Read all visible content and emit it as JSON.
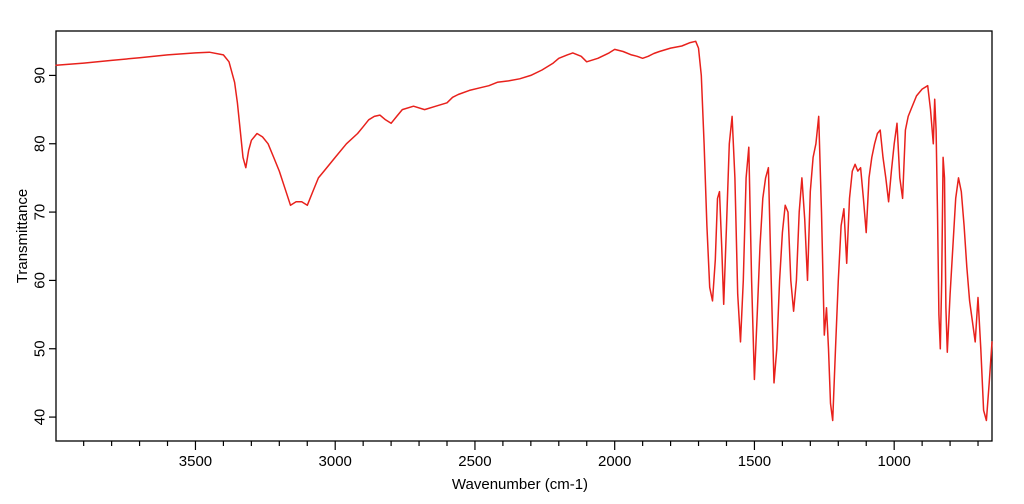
{
  "chart_data": {
    "type": "line",
    "title": "",
    "xlabel": "Wavenumber (cm-1)",
    "ylabel": "Transmittance",
    "xlim": [
      3999,
      650
    ],
    "ylim": [
      36.5,
      96.5
    ],
    "x_reversed": true,
    "grid": false,
    "legend": "none",
    "color": "#e8211c",
    "x_major_ticks": [
      3500,
      3000,
      2500,
      2000,
      1500,
      1000
    ],
    "x_tick_labels": [
      "3500",
      "3000",
      "2500",
      "2000",
      "1500",
      "1000"
    ],
    "x_minor_step": 100,
    "y_major_ticks": [
      40,
      50,
      60,
      70,
      80,
      90
    ],
    "y_tick_labels": [
      "40",
      "50",
      "60",
      "70",
      "80",
      "90"
    ],
    "series": [
      {
        "name": "",
        "x": [
          3999,
          3900,
          3800,
          3700,
          3600,
          3500,
          3450,
          3400,
          3380,
          3360,
          3350,
          3340,
          3330,
          3320,
          3310,
          3300,
          3280,
          3260,
          3240,
          3220,
          3200,
          3180,
          3160,
          3140,
          3120,
          3100,
          3080,
          3060,
          3040,
          3000,
          2960,
          2920,
          2900,
          2880,
          2860,
          2840,
          2820,
          2800,
          2780,
          2760,
          2720,
          2680,
          2640,
          2600,
          2580,
          2560,
          2520,
          2480,
          2450,
          2420,
          2380,
          2340,
          2300,
          2260,
          2220,
          2200,
          2170,
          2150,
          2120,
          2100,
          2060,
          2020,
          2000,
          1970,
          1940,
          1920,
          1900,
          1880,
          1860,
          1840,
          1800,
          1760,
          1730,
          1710,
          1700,
          1690,
          1680,
          1670,
          1660,
          1650,
          1640,
          1632,
          1625,
          1617,
          1610,
          1600,
          1590,
          1580,
          1570,
          1560,
          1550,
          1540,
          1530,
          1520,
          1510,
          1500,
          1490,
          1480,
          1470,
          1460,
          1450,
          1440,
          1430,
          1420,
          1410,
          1400,
          1390,
          1380,
          1370,
          1360,
          1350,
          1340,
          1330,
          1320,
          1310,
          1300,
          1290,
          1280,
          1270,
          1260,
          1250,
          1242,
          1235,
          1228,
          1220,
          1210,
          1200,
          1190,
          1180,
          1170,
          1160,
          1150,
          1140,
          1130,
          1120,
          1110,
          1100,
          1090,
          1080,
          1070,
          1060,
          1050,
          1040,
          1030,
          1020,
          1010,
          1000,
          990,
          980,
          970,
          960,
          950,
          940,
          920,
          900,
          880,
          870,
          860,
          855,
          850,
          845,
          840,
          835,
          830,
          825,
          820,
          815,
          810,
          800,
          790,
          780,
          770,
          760,
          750,
          740,
          730,
          720,
          710,
          700,
          690,
          680,
          670,
          660,
          650
        ],
        "y": [
          91.5,
          91.8,
          92.2,
          92.6,
          93.0,
          93.3,
          93.4,
          93.0,
          92.0,
          89.0,
          86.0,
          82.0,
          78.0,
          76.5,
          79.0,
          80.5,
          81.5,
          81.0,
          80.0,
          78.0,
          76.0,
          73.5,
          71.0,
          71.5,
          71.5,
          71.0,
          73.0,
          75.0,
          76.0,
          78.0,
          80.0,
          81.5,
          82.5,
          83.5,
          84.0,
          84.2,
          83.5,
          83.0,
          84.0,
          85.0,
          85.5,
          85.0,
          85.5,
          86.0,
          86.8,
          87.2,
          87.8,
          88.2,
          88.5,
          89.0,
          89.2,
          89.5,
          90.0,
          90.8,
          91.8,
          92.5,
          93.0,
          93.3,
          92.8,
          92.0,
          92.5,
          93.3,
          93.8,
          93.5,
          93.0,
          92.8,
          92.5,
          92.8,
          93.2,
          93.5,
          94.0,
          94.3,
          94.8,
          95.0,
          94.0,
          90.0,
          80.0,
          68.0,
          59.0,
          57.0,
          63.0,
          72.0,
          73.0,
          65.0,
          56.5,
          68.0,
          80.0,
          84.0,
          75.0,
          58.0,
          51.0,
          60.0,
          75.0,
          79.5,
          60.0,
          45.5,
          55.0,
          65.0,
          72.0,
          75.0,
          76.5,
          60.0,
          45.0,
          50.0,
          60.0,
          67.0,
          71.0,
          70.0,
          60.0,
          55.5,
          60.0,
          70.0,
          75.0,
          69.0,
          60.0,
          73.0,
          78.0,
          80.0,
          84.0,
          70.0,
          52.0,
          56.0,
          50.0,
          42.0,
          39.5,
          50.0,
          60.0,
          68.0,
          70.5,
          62.5,
          72.0,
          76.0,
          77.0,
          76.0,
          76.5,
          72.0,
          67.0,
          75.0,
          78.0,
          80.0,
          81.5,
          82.0,
          78.0,
          75.0,
          71.5,
          76.0,
          80.0,
          83.0,
          75.0,
          72.0,
          82.0,
          84.0,
          85.0,
          87.0,
          88.0,
          88.5,
          85.0,
          80.0,
          86.5,
          82.0,
          70.0,
          55.0,
          50.0,
          60.0,
          78.0,
          75.0,
          56.0,
          49.5,
          58.0,
          65.0,
          72.0,
          75.0,
          73.0,
          68.0,
          62.0,
          57.0,
          54.0,
          51.0,
          57.5,
          50.0,
          41.0,
          39.5,
          45.0,
          51.0
        ]
      }
    ]
  }
}
